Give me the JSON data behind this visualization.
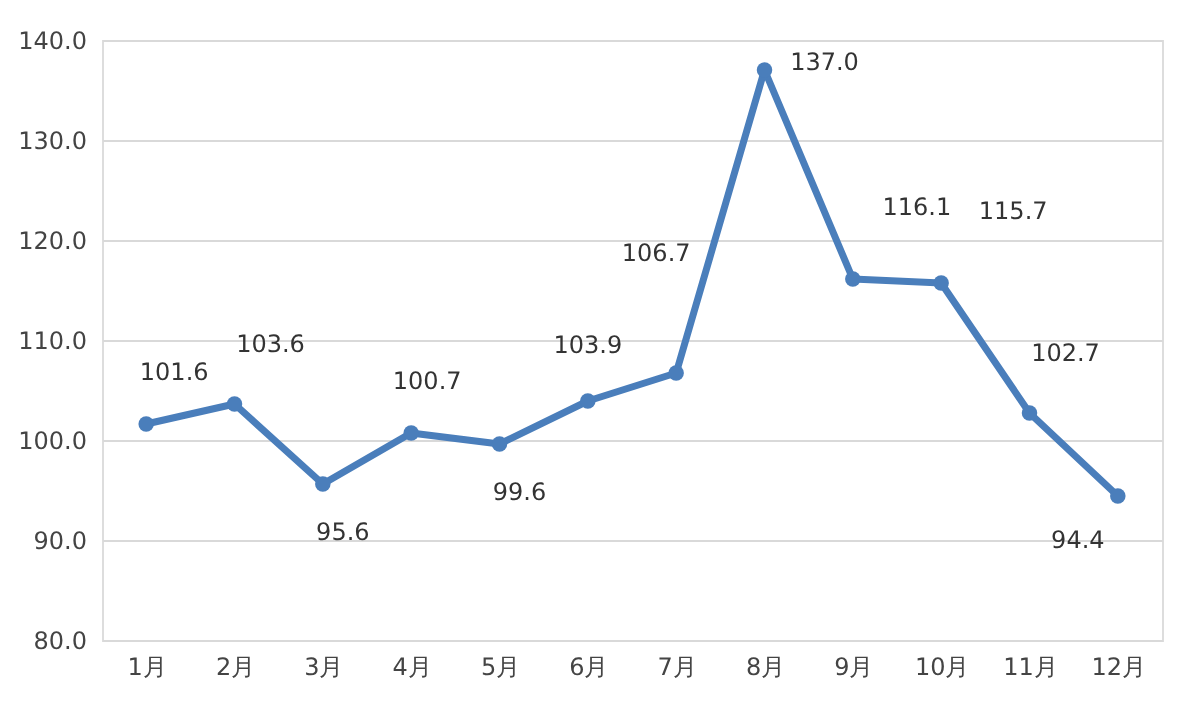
{
  "chart_data": {
    "type": "line",
    "categories": [
      "1月",
      "2月",
      "3月",
      "4月",
      "5月",
      "6月",
      "7月",
      "8月",
      "9月",
      "10月",
      "11月",
      "12月"
    ],
    "series": [
      {
        "color": "#4a7ebb",
        "values": [
          101.6,
          103.6,
          95.6,
          100.7,
          99.6,
          103.9,
          106.7,
          137.0,
          116.1,
          115.7,
          102.7,
          94.4
        ]
      }
    ],
    "value_labels": [
      "101.6",
      "103.6",
      "95.6",
      "100.7",
      "99.6",
      "103.9",
      "106.7",
      "137.0",
      "116.1",
      "115.7",
      "102.7",
      "94.4"
    ],
    "ylim": [
      80,
      140
    ],
    "yticks": [
      {
        "value": 80,
        "label": "80.0"
      },
      {
        "value": 90,
        "label": "90.0"
      },
      {
        "value": 100,
        "label": "100.0"
      },
      {
        "value": 110,
        "label": "110.0"
      },
      {
        "value": 120,
        "label": "120.0"
      },
      {
        "value": 130,
        "label": "130.0"
      },
      {
        "value": 140,
        "label": "140.0"
      }
    ],
    "grid": "y",
    "marker": "circle",
    "line_style": "solid"
  }
}
